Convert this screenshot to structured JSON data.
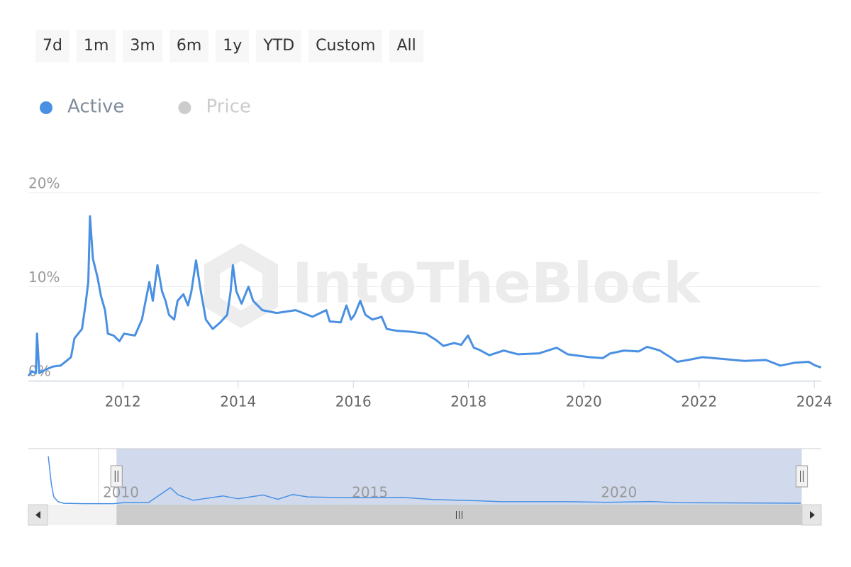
{
  "range_buttons": [
    "7d",
    "1m",
    "3m",
    "6m",
    "1y",
    "YTD",
    "Custom",
    "All"
  ],
  "chart_data": {
    "type": "line",
    "watermark": "IntoTheBlock",
    "series": [
      {
        "name": "Active",
        "color": "#4a90e2",
        "visible": true,
        "x": [
          2010.36,
          2010.42,
          2010.49,
          2010.51,
          2010.55,
          2010.67,
          2010.79,
          2010.92,
          2011.04,
          2011.1,
          2011.16,
          2011.29,
          2011.35,
          2011.4,
          2011.43,
          2011.48,
          2011.56,
          2011.62,
          2011.69,
          2011.74,
          2011.84,
          2011.94,
          2012.02,
          2012.21,
          2012.33,
          2012.46,
          2012.52,
          2012.6,
          2012.68,
          2012.74,
          2012.8,
          2012.89,
          2012.95,
          2013.05,
          2013.13,
          2013.19,
          2013.27,
          2013.34,
          2013.44,
          2013.56,
          2013.69,
          2013.81,
          2013.87,
          2013.91,
          2013.97,
          2014.06,
          2014.18,
          2014.26,
          2014.42,
          2014.67,
          2015.0,
          2015.29,
          2015.53,
          2015.59,
          2015.78,
          2015.88,
          2015.96,
          2016.02,
          2016.12,
          2016.21,
          2016.33,
          2016.49,
          2016.58,
          2016.76,
          2017.01,
          2017.26,
          2017.44,
          2017.56,
          2017.75,
          2017.87,
          2017.99,
          2018.09,
          2018.18,
          2018.36,
          2018.61,
          2018.86,
          2019.22,
          2019.53,
          2019.72,
          2020.09,
          2020.33,
          2020.46,
          2020.7,
          2020.95,
          2021.1,
          2021.32,
          2021.5,
          2021.62,
          2021.81,
          2022.06,
          2022.42,
          2022.79,
          2023.16,
          2023.41,
          2023.66,
          2023.9,
          2024.02,
          2024.12
        ],
        "values": [
          0.5,
          1.0,
          0.8,
          5.0,
          0.8,
          1.2,
          1.5,
          1.6,
          2.2,
          2.5,
          4.5,
          5.5,
          8.0,
          10.5,
          17.5,
          13.0,
          11.0,
          9.0,
          7.5,
          5.0,
          4.8,
          4.2,
          5.0,
          4.8,
          6.5,
          10.5,
          8.5,
          12.3,
          9.5,
          8.5,
          7.0,
          6.5,
          8.5,
          9.2,
          8.0,
          9.5,
          12.8,
          10.0,
          6.5,
          5.5,
          6.2,
          7.0,
          9.5,
          12.3,
          9.5,
          8.2,
          10.0,
          8.5,
          7.5,
          7.2,
          7.5,
          6.8,
          7.5,
          6.3,
          6.2,
          8.0,
          6.5,
          7.0,
          8.5,
          7.0,
          6.5,
          6.8,
          5.5,
          5.3,
          5.2,
          5.0,
          4.3,
          3.7,
          4.0,
          3.8,
          4.8,
          3.5,
          3.3,
          2.7,
          3.2,
          2.8,
          2.9,
          3.5,
          2.8,
          2.5,
          2.4,
          2.9,
          3.2,
          3.1,
          3.6,
          3.2,
          2.5,
          2.0,
          2.2,
          2.5,
          2.3,
          2.1,
          2.2,
          1.6,
          1.9,
          2.0,
          1.6,
          1.4
        ]
      },
      {
        "name": "Price",
        "color": "#cccccc",
        "visible": false
      }
    ],
    "xlim": [
      2010.36,
      2024.12
    ],
    "xticks": [
      2012,
      2014,
      2016,
      2018,
      2020,
      2022,
      2024
    ],
    "ylim": [
      0,
      20
    ],
    "yticks": [
      {
        "value": 0,
        "label": "0%"
      },
      {
        "value": 10,
        "label": "10%"
      },
      {
        "value": 20,
        "label": "20%"
      }
    ],
    "grid": true,
    "navigator": {
      "x": [
        2008.99,
        2009.05,
        2009.1,
        2009.19,
        2009.3,
        2009.7,
        2010.3,
        2010.5,
        2011.0,
        2011.44,
        2011.6,
        2011.9,
        2012.5,
        2012.8,
        2013.3,
        2013.6,
        2013.9,
        2014.2,
        2015.0,
        2016.1,
        2016.7,
        2017.6,
        2018.1,
        2019.5,
        2020.2,
        2021.1,
        2021.6,
        2024.1
      ],
      "values": [
        50,
        22,
        8,
        3,
        1.4,
        1,
        1,
        2,
        2,
        17.5,
        10,
        4.5,
        9,
        6,
        10,
        5.5,
        10.5,
        8,
        7.2,
        7.5,
        5.3,
        4,
        3,
        3,
        2.4,
        3.2,
        2.0,
        1.5
      ],
      "xlim": [
        2008.59,
        2024.51
      ],
      "ylim": [
        0,
        55
      ],
      "xticks": [
        2010,
        2015,
        2020
      ]
    }
  }
}
